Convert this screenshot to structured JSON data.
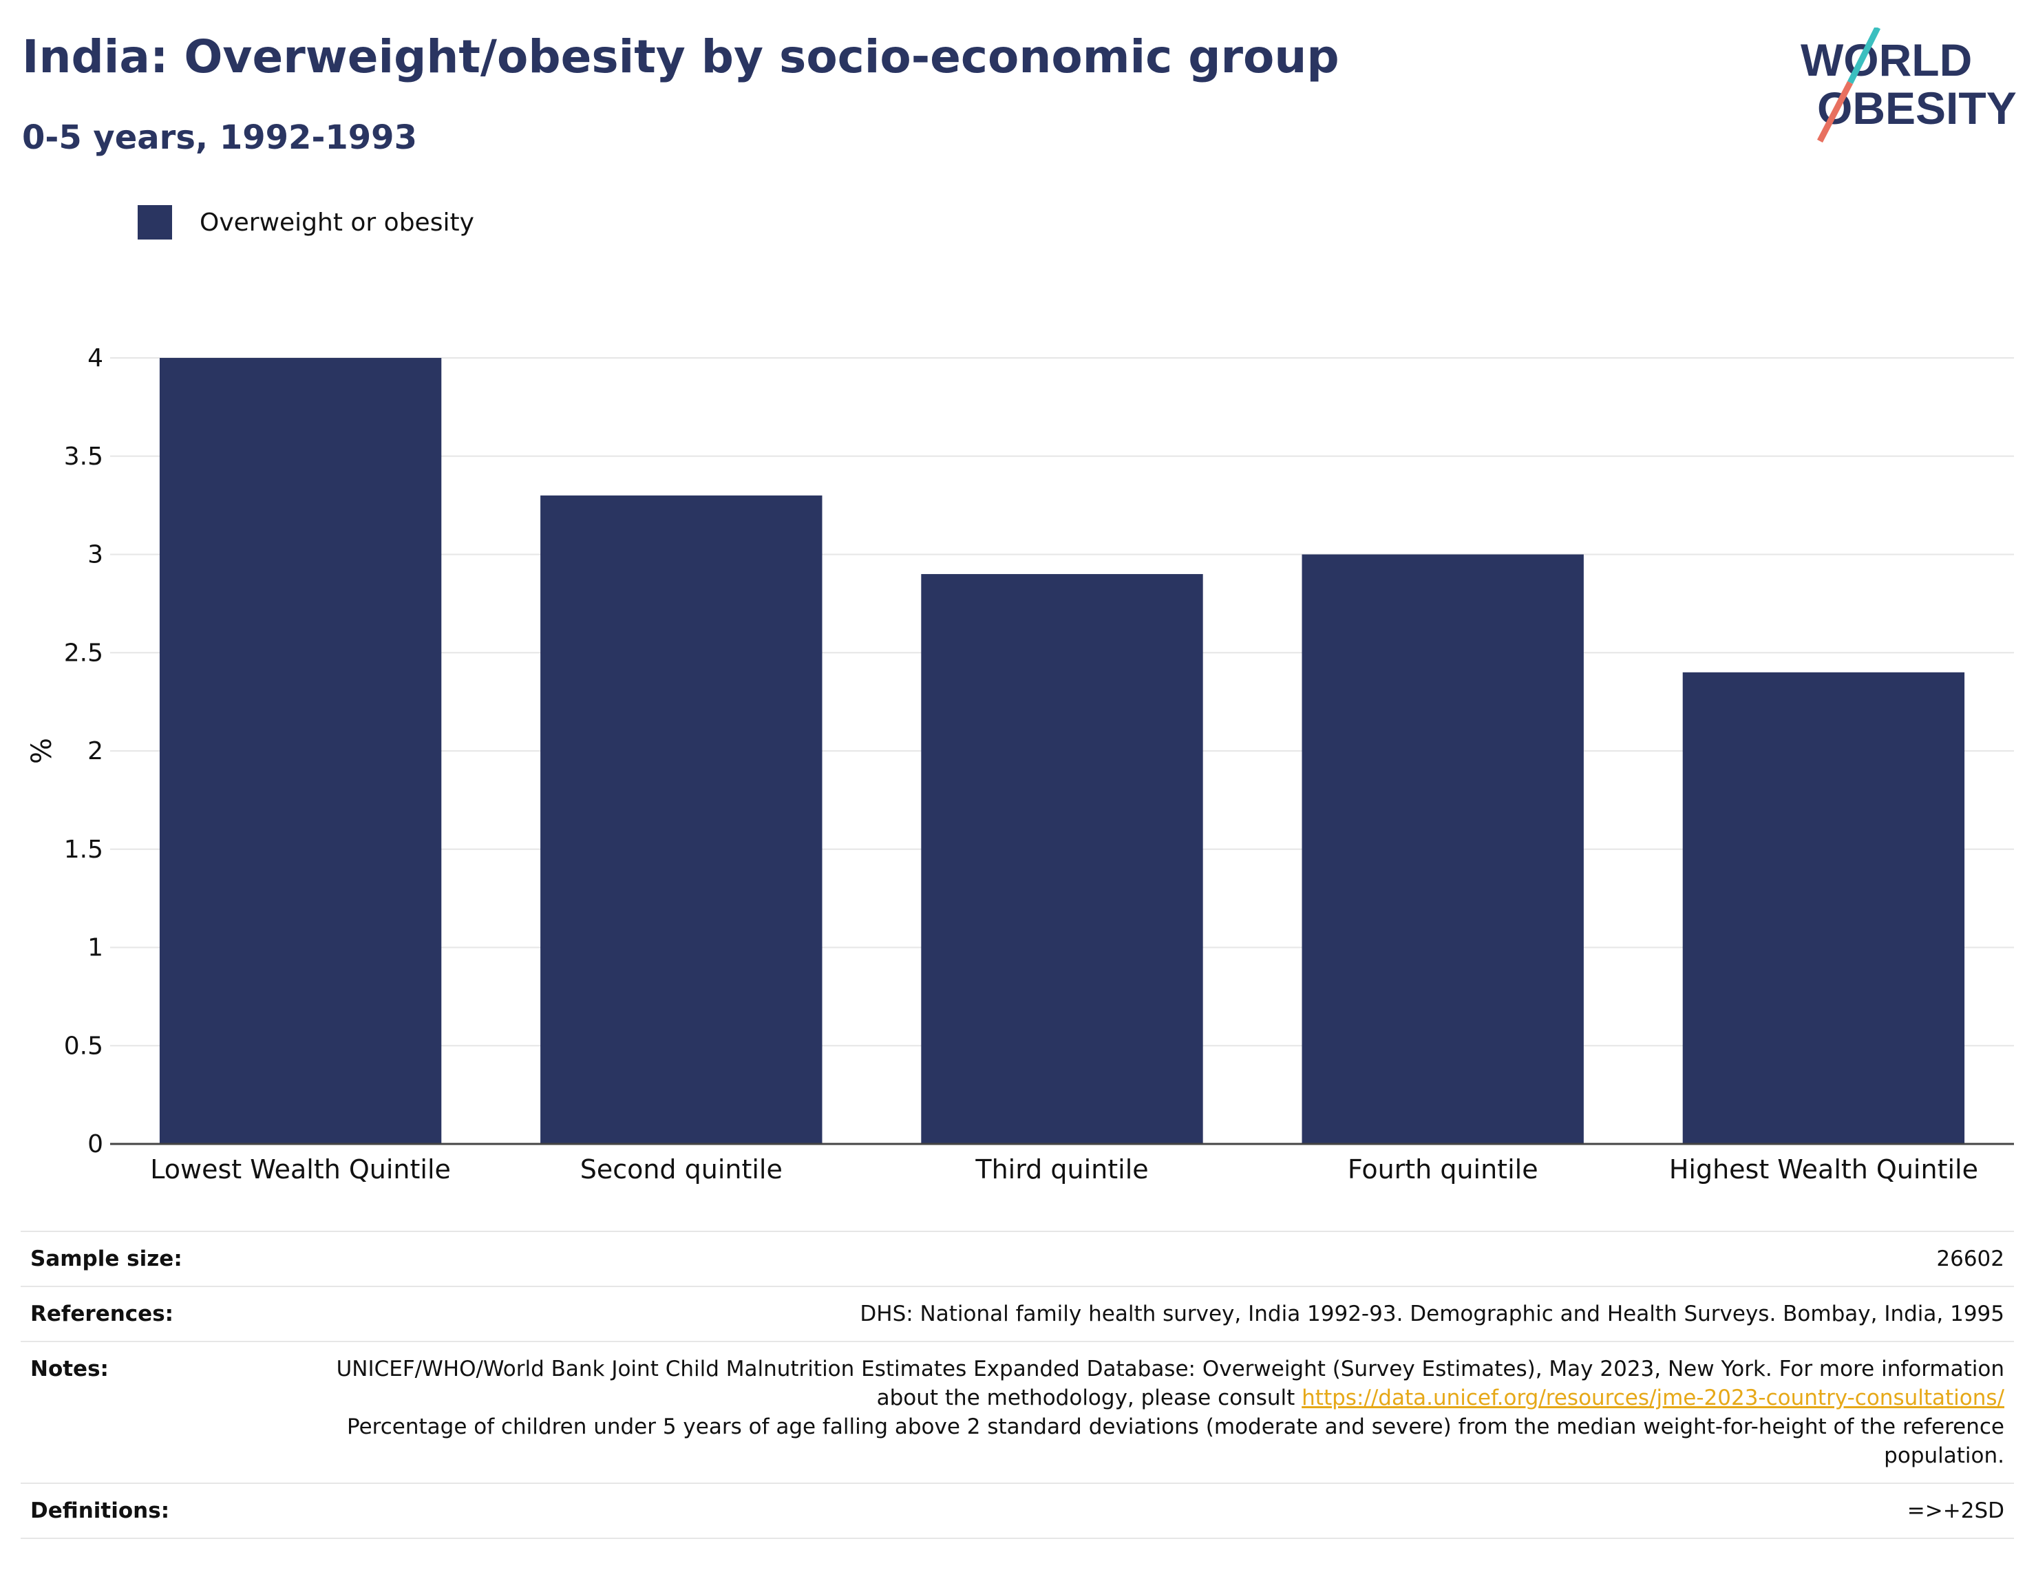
{
  "header": {
    "title": "India: Overweight/obesity by socio-economic group",
    "subtitle": "0-5 years, 1992-1993"
  },
  "logo": {
    "line1": "WORLD",
    "line2": "OBESITY",
    "accent_colors": [
      "#3bbfbf",
      "#e8705f"
    ]
  },
  "legend": {
    "label": "Overweight or obesity",
    "color": "#2a3561"
  },
  "chart_data": {
    "type": "bar",
    "categories": [
      "Lowest Wealth Quintile",
      "Second quintile",
      "Third quintile",
      "Fourth quintile",
      "Highest Wealth Quintile"
    ],
    "series": [
      {
        "name": "Overweight or obesity",
        "values": [
          4.0,
          3.3,
          2.9,
          3.0,
          2.4
        ],
        "color": "#2a3561"
      }
    ],
    "ylabel": "%",
    "ylim": [
      0,
      4
    ],
    "yticks": [
      0,
      0.5,
      1,
      1.5,
      2,
      2.5,
      3,
      3.5,
      4
    ],
    "ytick_labels": [
      "0",
      "0.5",
      "1",
      "1.5",
      "2",
      "2.5",
      "3",
      "3.5",
      "4"
    ],
    "grid": true,
    "legend_position": "top-left"
  },
  "info": {
    "sample_size_label": "Sample size:",
    "sample_size": "26602",
    "references_label": "References:",
    "references": "DHS: National family health survey, India 1992-93. Demographic and Health Surveys. Bombay, India, 1995",
    "notes_label": "Notes:",
    "notes_text": "UNICEF/WHO/World Bank Joint Child Malnutrition Estimates Expanded Database: Overweight (Survey Estimates), May 2023, New York. For more information about the methodology, please consult ",
    "notes_link": "https://data.unicef.org/resources/jme-2023-country-consultations/",
    "notes_text2": "Percentage of children under 5 years of age falling above 2 standard deviations (moderate and severe) from the median weight-for-height of the reference population.",
    "definitions_label": "Definitions:",
    "definitions": "=>+2SD"
  }
}
